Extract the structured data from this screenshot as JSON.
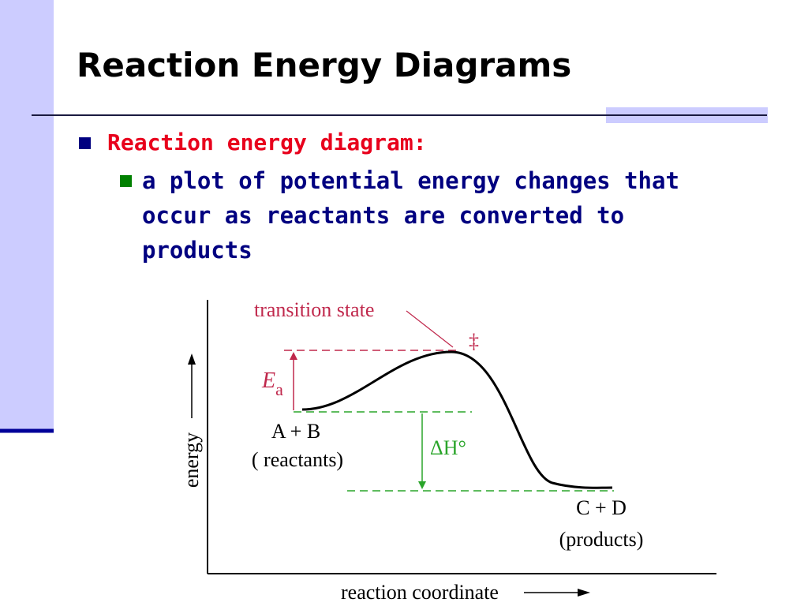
{
  "title": "Reaction Energy Diagrams",
  "bullets": [
    {
      "text": "Reaction energy diagram:",
      "subbullets": [
        "a plot of potential energy changes that occur as reactants are converted to products"
      ]
    }
  ],
  "diagram": {
    "transition_state": "transition state",
    "double_dagger": "‡",
    "activation_energy": {
      "symbol": "E",
      "subscript": "a"
    },
    "reactants": "A + B",
    "reactants_note": "( reactants)",
    "enthalpy": "ΔH°",
    "products": "C + D",
    "products_note": "(products)",
    "y_axis": "energy",
    "x_axis": "reaction coordinate"
  }
}
